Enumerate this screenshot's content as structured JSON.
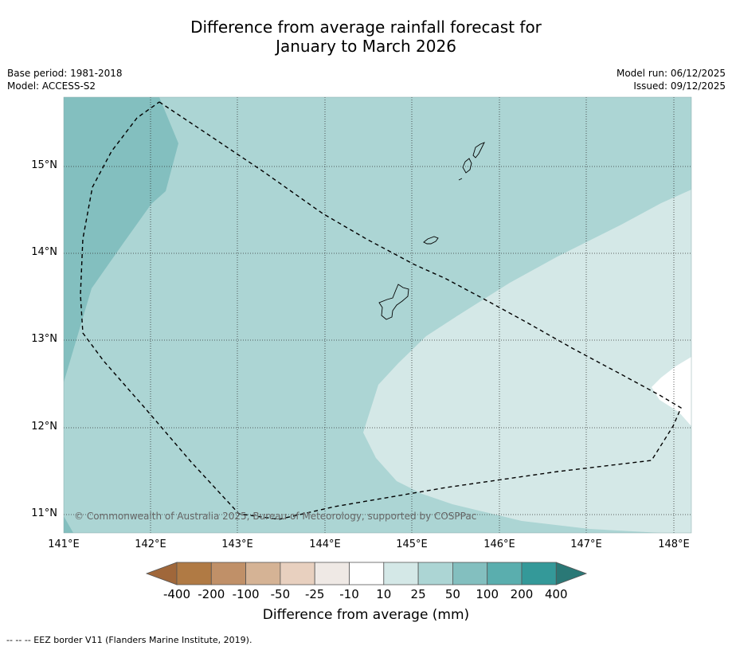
{
  "title": {
    "line1": "Difference from average rainfall forecast for",
    "line2": "January to March 2026"
  },
  "meta": {
    "base_period": "Base period: 1981-2018",
    "model": "Model: ACCESS-S2",
    "model_run": "Model run: 06/12/2025",
    "issued": "Issued: 09/12/2025"
  },
  "map": {
    "lat_labels": [
      "15°N",
      "14°N",
      "13°N",
      "12°N",
      "11°N"
    ],
    "lon_labels": [
      "141°E",
      "142°E",
      "143°E",
      "144°E",
      "145°E",
      "146°E",
      "147°E",
      "148°E"
    ],
    "copyright": "© Commonwealth of Australia 2025, Bureau of Meteorology, supported by COSPPac",
    "fill_categories": {
      "band_50_100": "50 to 100",
      "band_25_50": "25 to 50",
      "band_10_25": "10 to 25",
      "band_10": "-10 to 10"
    }
  },
  "legend": {
    "ticks": [
      "-400",
      "-200",
      "-100",
      "-50",
      "-25",
      "-10",
      "10",
      "25",
      "50",
      "100",
      "200",
      "400"
    ],
    "colors": [
      "#a0673a",
      "#b07a44",
      "#c09068",
      "#d5b395",
      "#e8d0bf",
      "#efe9e5",
      "#ffffff",
      "#d4e8e7",
      "#acd5d4",
      "#83bfbf",
      "#5aaeae",
      "#349999",
      "#2a7876"
    ],
    "title": "Difference from average (mm)"
  },
  "footnote": "--  --  -- EEZ border V11 (Flanders Marine Institute, 2019)."
}
